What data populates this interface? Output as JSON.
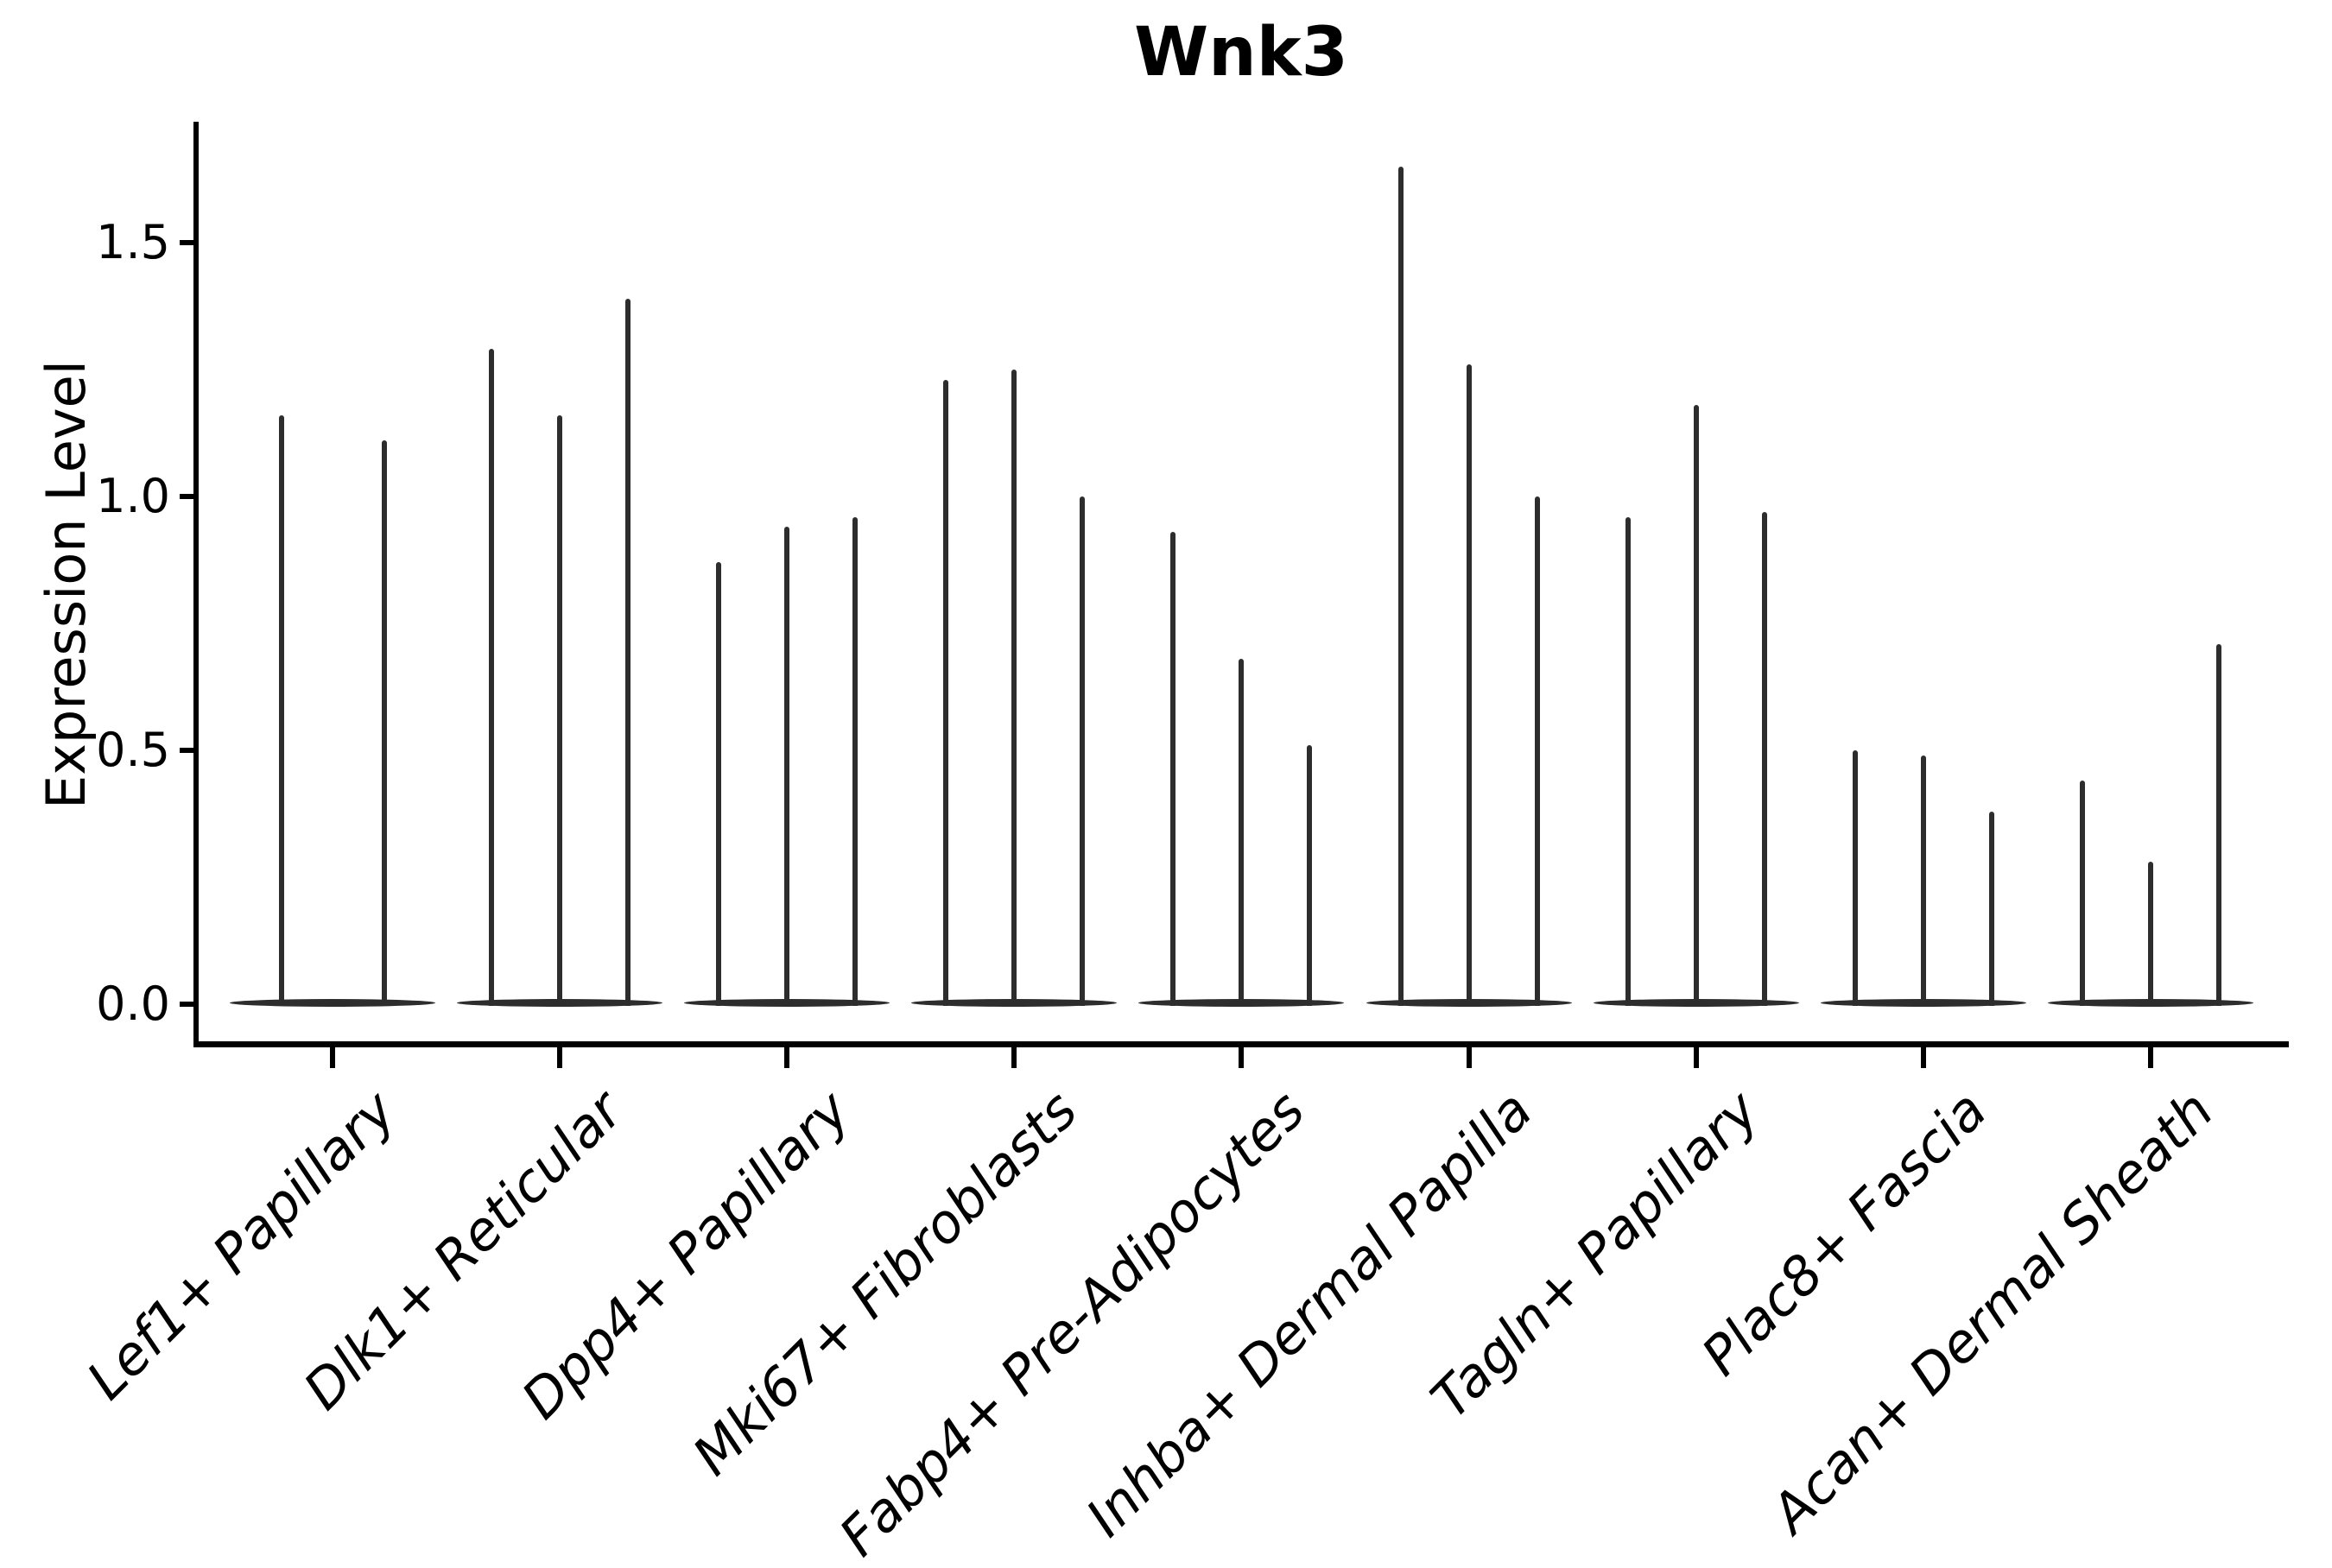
{
  "figure": {
    "title": "Wnk3"
  },
  "y_axis": {
    "label": "Expression Level"
  },
  "chart_data": {
    "type": "violin",
    "title": "Wnk3",
    "subtitle": "",
    "xlabel": "",
    "ylabel": "Expression Level",
    "yticks": [
      0.0,
      0.5,
      1.0,
      1.5
    ],
    "ylim": [
      -0.08,
      1.74
    ],
    "grid": false,
    "legend": false,
    "x_tick_rotation_deg": 45,
    "categories": [
      "Lef1+ Papillary",
      "Dlk1+ Reticular",
      "Dpp4+ Papillary",
      "Mki67+ Fibroblasts",
      "Fabp4+ Pre-Adipocytes",
      "Inhba+ Dermal Papilla",
      "Tagln+ Papillary",
      "Plac8+ Fascia",
      "Acan+ Dermal Sheath"
    ],
    "violins": [
      {
        "category": "Lef1+ Papillary",
        "peaks": [
          1.16,
          1.11
        ]
      },
      {
        "category": "Dlk1+ Reticular",
        "peaks": [
          1.29,
          1.16,
          1.39
        ]
      },
      {
        "category": "Dpp4+ Papillary",
        "peaks": [
          0.87,
          0.94,
          0.96
        ]
      },
      {
        "category": "Mki67+ Fibroblasts",
        "peaks": [
          1.23,
          1.25,
          1.0
        ]
      },
      {
        "category": "Fabp4+ Pre-Adipocytes",
        "peaks": [
          0.93,
          0.68,
          0.51
        ]
      },
      {
        "category": "Inhba+ Dermal Papilla",
        "peaks": [
          1.65,
          1.26,
          1.0
        ]
      },
      {
        "category": "Tagln+ Papillary",
        "peaks": [
          0.96,
          1.18,
          0.97
        ]
      },
      {
        "category": "Plac8+ Fascia",
        "peaks": [
          0.5,
          0.49,
          0.38
        ]
      },
      {
        "category": "Acan+ Dermal Sheath",
        "peaks": [
          0.44,
          0.28,
          0.71
        ]
      }
    ],
    "baseline_value": 0.0,
    "style": {
      "violin_color": "#2d2d2d",
      "axis_color": "#000000",
      "background": "#ffffff"
    }
  }
}
